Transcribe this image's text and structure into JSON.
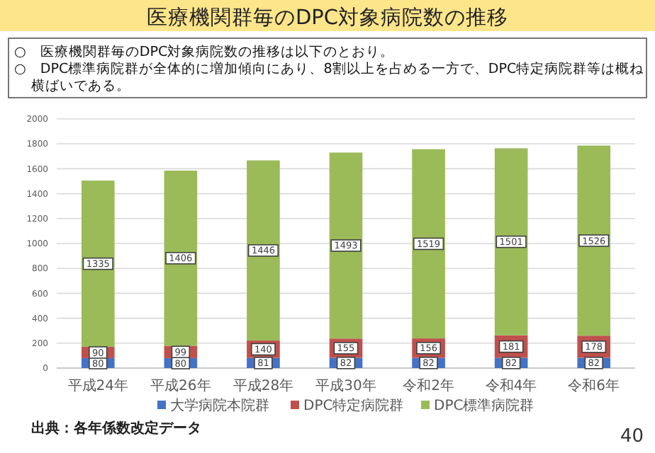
{
  "chart_data": {
    "type": "bar",
    "stacked": true,
    "title": "医療機関群毎のDPC対象病院数の推移",
    "annotations": [
      "○　医療機関群毎のDPC対象病院数の推移は以下のとおり。",
      "○　DPC標準病院群が全体的に増加傾向にあり、8割以上を占める一方で、DPC特定病院群等は概ね横ばいである。",
      "出典：各年係数改定データ",
      "40"
    ],
    "categories": [
      "平成24年",
      "平成26年",
      "平成28年",
      "平成30年",
      "令和2年",
      "令和4年",
      "令和6年"
    ],
    "series": [
      {
        "name": "大学病院本院群",
        "color": "#4472c4",
        "values": [
          80,
          80,
          81,
          82,
          82,
          82,
          82
        ]
      },
      {
        "name": "DPC特定病院群",
        "color": "#c0504d",
        "values": [
          90,
          99,
          140,
          155,
          156,
          181,
          178
        ]
      },
      {
        "name": "DPC標準病院群",
        "color": "#9bbb59",
        "values": [
          1335,
          1406,
          1446,
          1493,
          1519,
          1501,
          1526
        ]
      }
    ],
    "ylim": [
      0,
      2000
    ],
    "yticks": [
      0,
      200,
      400,
      600,
      800,
      1000,
      1200,
      1400,
      1600,
      1800,
      2000
    ],
    "grid": "y",
    "data_labels": true,
    "legend": "bottom"
  }
}
